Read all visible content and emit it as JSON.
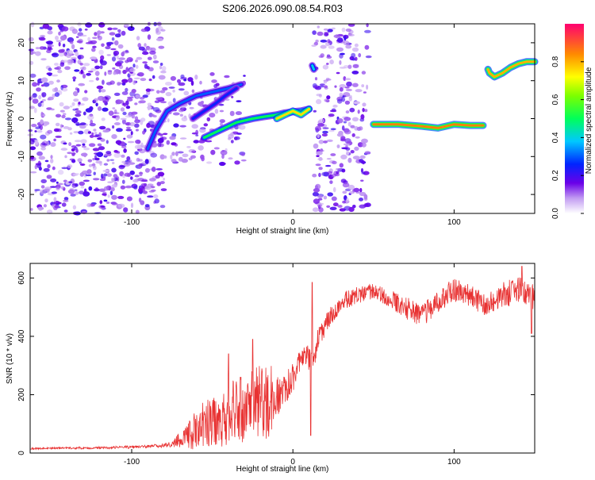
{
  "title": "S206.2026.090.08.54.R03",
  "colors": {
    "snr_line": "#e83232",
    "axis": "#000000",
    "background": "#ffffff"
  },
  "chart_data": [
    {
      "type": "heatmap",
      "name": "spectrogram",
      "title": "S206.2026.090.08.54.R03",
      "xlabel": "Height of straight line (km)",
      "ylabel": "Frequency (Hz)",
      "xlim": [
        -163,
        150
      ],
      "ylim": [
        -25,
        25
      ],
      "x_ticks": [
        -100,
        0,
        100
      ],
      "y_ticks": [
        -20,
        -10,
        0,
        10,
        20
      ],
      "x_tick_labels": [
        "-100",
        "0",
        "100"
      ],
      "y_tick_labels": [
        "-20",
        "-10",
        "0",
        "10",
        "20"
      ],
      "colorbar": {
        "label": "Normalized spectral amplitude",
        "range": [
          0,
          1
        ],
        "ticks": [
          0.0,
          0.2,
          0.4,
          0.6,
          0.8
        ],
        "tick_labels": [
          "0.0",
          "0.2",
          "0.4",
          "0.6",
          "0.8"
        ]
      },
      "noise_regions": [
        {
          "x": [
            -163,
            -80
          ],
          "y": [
            -25,
            25
          ],
          "density": 0.35
        },
        {
          "x": [
            -80,
            -30
          ],
          "y": [
            -12,
            12
          ],
          "density": 0.22
        },
        {
          "x": [
            13,
            47
          ],
          "y": [
            -25,
            25
          ],
          "density": 0.3
        }
      ],
      "ridges": [
        {
          "points": [
            [
              -90,
              -8
            ],
            [
              -85,
              -3
            ],
            [
              -78,
              2
            ],
            [
              -70,
              4
            ],
            [
              -60,
              6
            ],
            [
              -50,
              7
            ],
            [
              -40,
              8
            ],
            [
              -32,
              9
            ]
          ],
          "amplitude": 0.3
        },
        {
          "points": [
            [
              -62,
              0
            ],
            [
              -55,
              2
            ],
            [
              -48,
              4
            ],
            [
              -42,
              6
            ],
            [
              -35,
              8
            ]
          ],
          "amplitude": 0.25
        },
        {
          "points": [
            [
              -55,
              -5
            ],
            [
              -45,
              -3
            ],
            [
              -35,
              -1
            ],
            [
              -25,
              0
            ],
            [
              -18,
              0.5
            ],
            [
              -10,
              1
            ],
            [
              -5,
              1.5
            ],
            [
              0,
              1.8
            ],
            [
              5,
              2
            ],
            [
              10,
              2.5
            ]
          ],
          "amplitude": 0.5
        },
        {
          "points": [
            [
              -10,
              0
            ],
            [
              -5,
              1
            ],
            [
              0,
              2
            ],
            [
              5,
              1
            ],
            [
              10,
              2.5
            ]
          ],
          "amplitude": 0.75
        },
        {
          "points": [
            [
              50,
              -1.5
            ],
            [
              65,
              -1.5
            ],
            [
              80,
              -2
            ],
            [
              90,
              -2.5
            ],
            [
              100,
              -1.5
            ],
            [
              110,
              -1.8
            ],
            [
              118,
              -1.8
            ]
          ],
          "amplitude": 0.85
        },
        {
          "points": [
            [
              12,
              14
            ],
            [
              13,
              13
            ]
          ],
          "amplitude": 0.4
        },
        {
          "points": [
            [
              121,
              13
            ],
            [
              122,
              12
            ],
            [
              125,
              11
            ],
            [
              130,
              12
            ],
            [
              135,
              13.5
            ],
            [
              140,
              14.5
            ],
            [
              145,
              15
            ],
            [
              150,
              15
            ]
          ],
          "amplitude": 0.8
        }
      ]
    },
    {
      "type": "line",
      "name": "snr",
      "xlabel": "Height of straight line (km)",
      "ylabel": "SNR (10 * v/v)",
      "xlim": [
        -163,
        150
      ],
      "ylim": [
        0,
        650
      ],
      "x_ticks": [
        -100,
        0,
        100
      ],
      "y_ticks": [
        0,
        200,
        400,
        600
      ],
      "x_tick_labels": [
        "-100",
        "0",
        "100"
      ],
      "y_tick_labels": [
        "0",
        "200",
        "400",
        "600"
      ],
      "series": [
        {
          "name": "SNR",
          "color": "#e83232",
          "envelope_x": [
            -163,
            -120,
            -90,
            -75,
            -65,
            -55,
            -45,
            -35,
            -25,
            -15,
            -8,
            0,
            8,
            12,
            15,
            20,
            30,
            40,
            50,
            60,
            70,
            80,
            90,
            100,
            110,
            120,
            130,
            140,
            150
          ],
          "envelope_y": [
            15,
            18,
            22,
            30,
            60,
            100,
            120,
            140,
            160,
            180,
            200,
            260,
            340,
            300,
            380,
            440,
            520,
            540,
            555,
            530,
            500,
            470,
            520,
            560,
            540,
            500,
            540,
            560,
            530
          ],
          "noise_amplitude": [
            3,
            4,
            5,
            10,
            50,
            80,
            100,
            120,
            130,
            130,
            60,
            50,
            40,
            40,
            40,
            35,
            30,
            30,
            25,
            30,
            40,
            40,
            40,
            40,
            40,
            40,
            45,
            50,
            50
          ],
          "spikes": [
            [
              -64,
              110
            ],
            [
              -40,
              340
            ],
            [
              -25,
              390
            ],
            [
              12,
              585
            ],
            [
              11,
              60
            ],
            [
              142,
              640
            ],
            [
              148,
              410
            ]
          ]
        }
      ]
    }
  ]
}
